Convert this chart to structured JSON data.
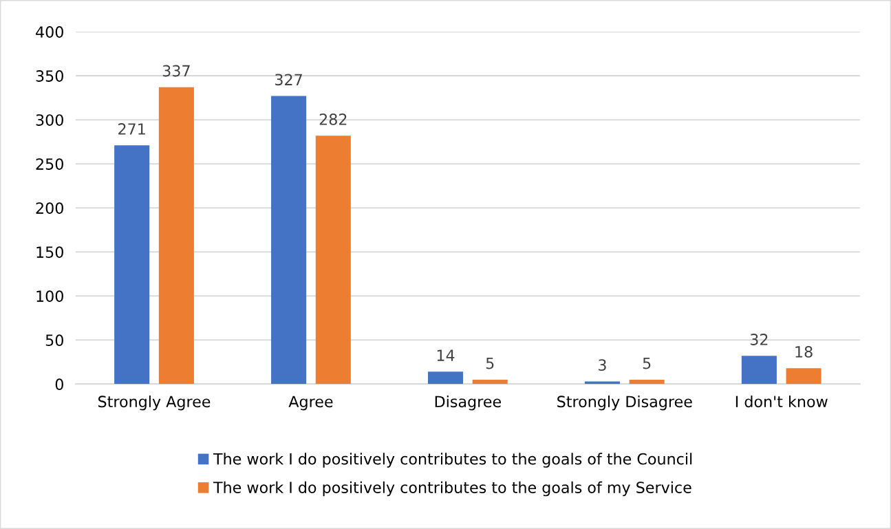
{
  "chart_data": {
    "type": "bar",
    "categories": [
      "Strongly Agree",
      "Agree",
      "Disagree",
      "Strongly Disagree",
      "I don't know"
    ],
    "series": [
      {
        "name": "The work I do positively contributes to the goals of the Council",
        "color": "#4472c4",
        "values": [
          271,
          327,
          14,
          3,
          32
        ]
      },
      {
        "name": "The work I do positively contributes to the goals of my Service",
        "color": "#ed7d31",
        "values": [
          337,
          282,
          5,
          5,
          18
        ]
      }
    ],
    "ylim": [
      0,
      400
    ],
    "yticks": [
      0,
      50,
      100,
      150,
      200,
      250,
      300,
      350,
      400
    ],
    "grid": "y",
    "legend": "bottom",
    "data_labels": true
  }
}
